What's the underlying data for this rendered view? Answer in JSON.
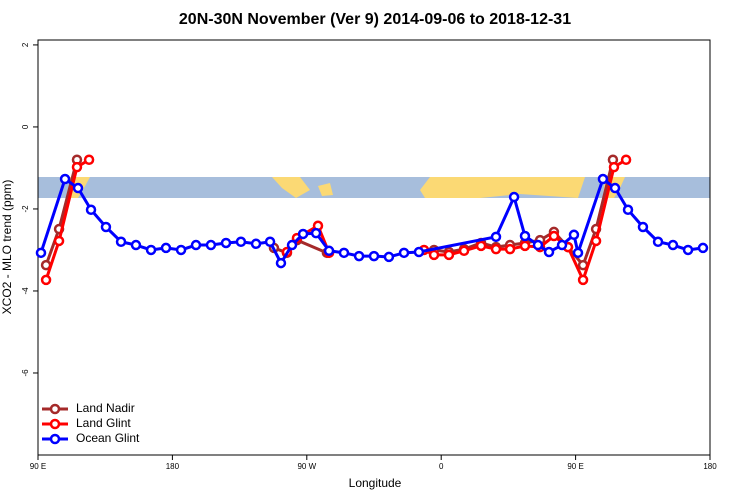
{
  "chart_data": {
    "type": "line",
    "title": "20N-30N November (Ver 9)   2014-09-06 to 2018-12-31",
    "xlabel": "Longitude",
    "ylabel": "XCO2 - MLO trend (ppm)",
    "xlim": [
      90,
      540
    ],
    "ylim": [
      -8,
      2.12
    ],
    "xticks": [
      {
        "value": 90,
        "label": "90 E"
      },
      {
        "value": 180,
        "label": "180"
      },
      {
        "value": 270,
        "label": "90 W"
      },
      {
        "value": 360,
        "label": "0"
      },
      {
        "value": 450,
        "label": "90 E"
      },
      {
        "value": 540,
        "label": "180"
      }
    ],
    "yticks": [
      2,
      0,
      -2,
      -4,
      -6
    ],
    "legend": "bottom-left",
    "series": [
      {
        "name": "Land Nadir",
        "color": "#a52a2a",
        "x": [
          95.4,
          104.1,
          116.1,
          null,
          248.0,
          256.7,
          263.4,
          283.5,
          null,
          355.2,
          365.2,
          375.3,
          386.7,
          396.7,
          406.1,
          416.1,
          426.2,
          435.5,
          444.9,
          455.0,
          463.7,
          475.0
        ],
        "values": [
          -3.37,
          -2.49,
          -0.8,
          null,
          -2.95,
          -3.07,
          -2.76,
          -3.07,
          null,
          -3.0,
          -3.05,
          -2.98,
          -2.83,
          -2.93,
          -2.88,
          -2.83,
          -2.76,
          -2.56,
          -2.93,
          -3.37,
          -2.49,
          -0.8
        ]
      },
      {
        "name": "Land Glint",
        "color": "#ff0000",
        "x": [
          95.4,
          104.1,
          116.1,
          124.2,
          null,
          256.7,
          263.4,
          277.5,
          284.9,
          null,
          348.5,
          355.2,
          365.2,
          375.3,
          386.7,
          396.7,
          406.1,
          416.1,
          426.2,
          435.5,
          444.9,
          455.0,
          463.7,
          475.7,
          483.8
        ],
        "values": [
          -3.73,
          -2.78,
          -0.98,
          -0.8,
          null,
          -3.05,
          -2.71,
          -2.41,
          -3.07,
          null,
          -3.0,
          -3.12,
          -3.12,
          -3.02,
          -2.9,
          -2.98,
          -2.98,
          -2.9,
          -2.93,
          -2.66,
          -2.93,
          -3.73,
          -2.78,
          -0.98,
          -0.8
        ]
      },
      {
        "name": "Ocean Glint",
        "color": "#0000ff",
        "x": [
          92.0,
          108.1,
          116.8,
          125.5,
          135.5,
          145.6,
          155.6,
          165.7,
          175.7,
          185.8,
          195.8,
          205.8,
          215.9,
          225.9,
          236.0,
          245.4,
          252.7,
          260.1,
          267.5,
          276.2,
          284.9,
          294.9,
          305.0,
          315.0,
          325.0,
          335.1,
          345.1,
          396.7,
          408.8,
          416.1,
          424.8,
          432.2,
          440.9,
          448.9,
          451.6,
          468.3,
          476.4,
          485.1,
          495.1,
          505.2,
          515.2,
          525.3,
          535.3
        ],
        "values": [
          -3.07,
          -1.27,
          -1.49,
          -2.02,
          -2.44,
          -2.8,
          -2.88,
          -3.0,
          -2.95,
          -3.0,
          -2.88,
          -2.88,
          -2.83,
          -2.8,
          -2.85,
          -2.8,
          -3.32,
          -2.88,
          -2.61,
          -2.59,
          -3.02,
          -3.07,
          -3.15,
          -3.15,
          -3.17,
          -3.07,
          -3.05,
          -2.68,
          -1.71,
          -2.66,
          -2.88,
          -3.05,
          -2.88,
          -2.63,
          -3.07,
          -1.27,
          -1.49,
          -2.02,
          -2.44,
          -2.8,
          -2.88,
          -3.0,
          -2.95
        ]
      }
    ]
  }
}
